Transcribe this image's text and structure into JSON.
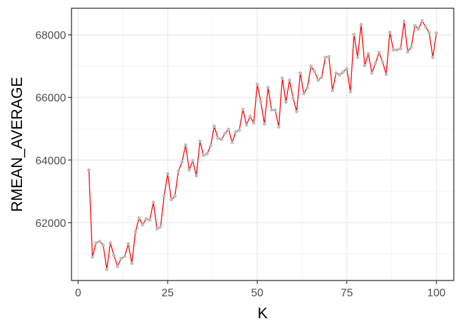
{
  "chart_data": {
    "type": "line",
    "title": "",
    "xlabel": "K",
    "ylabel": "RMEAN_AVERAGE",
    "xlim": [
      -1.85,
      104.85
    ],
    "ylim": [
      60150,
      68850
    ],
    "x_ticks": [
      0,
      25,
      50,
      75,
      100
    ],
    "x_tick_labels": [
      "0",
      "25",
      "50",
      "75",
      "100"
    ],
    "y_ticks": [
      62000,
      64000,
      66000,
      68000
    ],
    "y_tick_labels": [
      "62000",
      "64000",
      "66000",
      "68000"
    ],
    "grid": true,
    "legend": "none",
    "line_color": "#ff0000",
    "point_color": "#bfbfbf",
    "x": [
      3,
      4,
      5,
      6,
      7,
      8,
      9,
      10,
      11,
      12,
      13,
      14,
      15,
      16,
      17,
      18,
      19,
      20,
      21,
      22,
      23,
      24,
      25,
      26,
      27,
      28,
      29,
      30,
      31,
      32,
      33,
      34,
      35,
      36,
      37,
      38,
      39,
      40,
      41,
      42,
      43,
      44,
      45,
      46,
      47,
      48,
      49,
      50,
      51,
      52,
      53,
      54,
      55,
      56,
      57,
      58,
      59,
      60,
      61,
      62,
      63,
      64,
      65,
      66,
      67,
      68,
      69,
      70,
      71,
      72,
      73,
      74,
      75,
      76,
      77,
      78,
      79,
      80,
      81,
      82,
      83,
      84,
      85,
      86,
      87,
      88,
      89,
      90,
      91,
      92,
      93,
      94,
      95,
      96,
      97,
      98,
      99,
      100
    ],
    "y": [
      63680,
      60900,
      61350,
      61400,
      61280,
      60500,
      61350,
      60950,
      60600,
      60850,
      60920,
      61320,
      60700,
      61700,
      62150,
      61930,
      62120,
      62080,
      62650,
      61800,
      61860,
      62850,
      63560,
      62730,
      62840,
      63650,
      63940,
      64480,
      63680,
      63980,
      63500,
      64600,
      64150,
      64200,
      64450,
      65080,
      64700,
      64660,
      64850,
      64980,
      64560,
      64900,
      64960,
      65620,
      65120,
      65400,
      65180,
      66420,
      65850,
      65150,
      66320,
      65600,
      65600,
      65060,
      66620,
      65850,
      66550,
      65980,
      65550,
      66780,
      66120,
      66320,
      67000,
      66830,
      66550,
      66650,
      67280,
      67300,
      66220,
      66780,
      66720,
      66820,
      66920,
      66180,
      68010,
      67280,
      68330,
      67020,
      67400,
      66780,
      67100,
      67440,
      67130,
      66740,
      68080,
      67520,
      67520,
      67560,
      68430,
      67450,
      67620,
      68300,
      68180,
      68450,
      68260,
      68060,
      67280,
      68060
    ]
  }
}
